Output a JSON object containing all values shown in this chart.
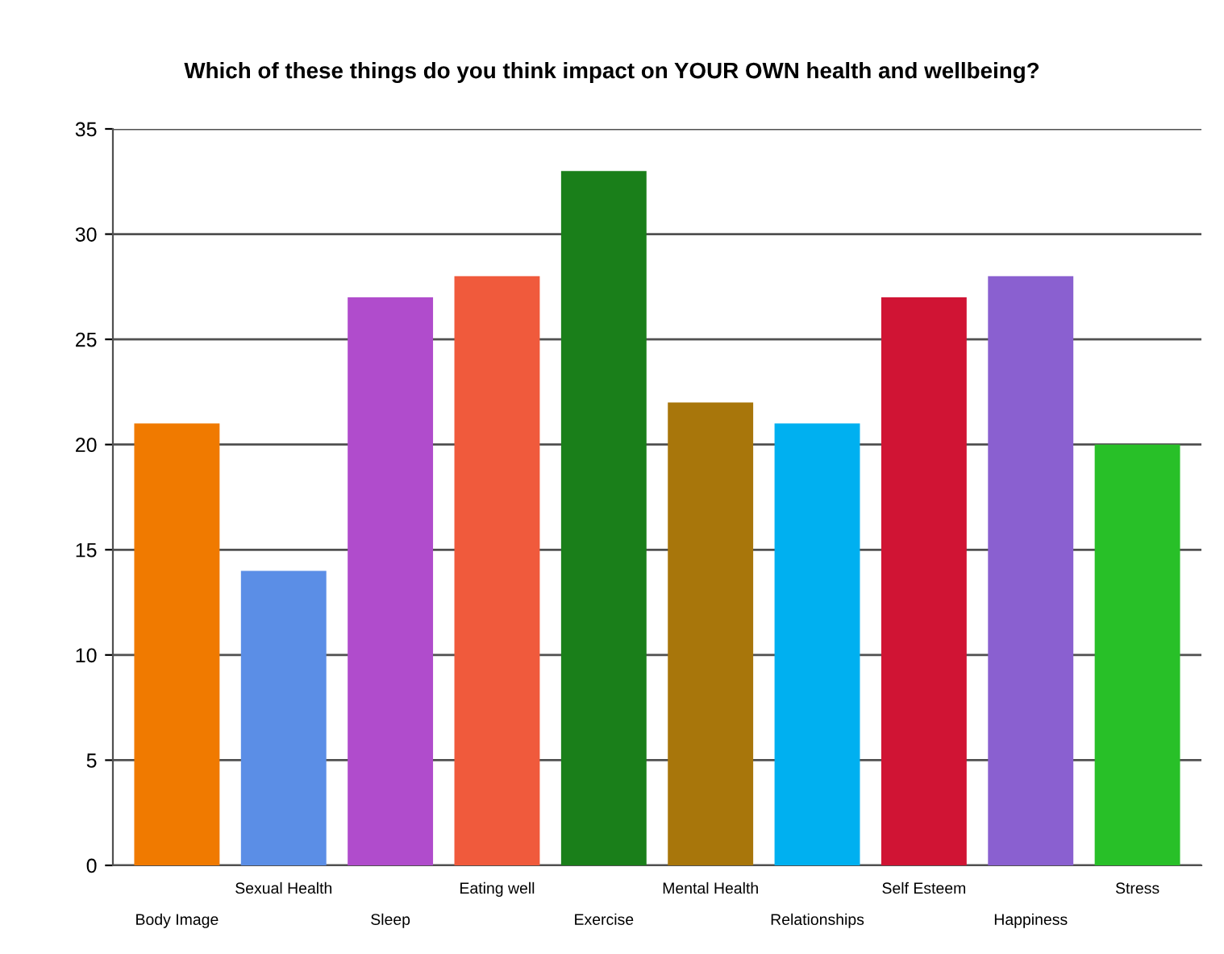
{
  "chart_data": {
    "type": "bar",
    "title": "Which of these things do you think impact on YOUR OWN health and wellbeing?",
    "categories": [
      "Body Image",
      "Sexual Health",
      "Sleep",
      "Eating well",
      "Exercise",
      "Mental Health",
      "Relationships",
      "Self Esteem",
      "Happiness",
      "Stress"
    ],
    "values": [
      21,
      14,
      27,
      28,
      33,
      22,
      21,
      27,
      28,
      20
    ],
    "colors": [
      "#f07a00",
      "#5b8ee6",
      "#b04ccc",
      "#f05a3c",
      "#1a7f1a",
      "#a8760b",
      "#00b0f0",
      "#d01434",
      "#8a60d0",
      "#28c028"
    ],
    "ylim": [
      0,
      35
    ],
    "yticks": [
      0,
      5,
      10,
      15,
      20,
      25,
      30,
      35
    ],
    "grid": "y"
  }
}
